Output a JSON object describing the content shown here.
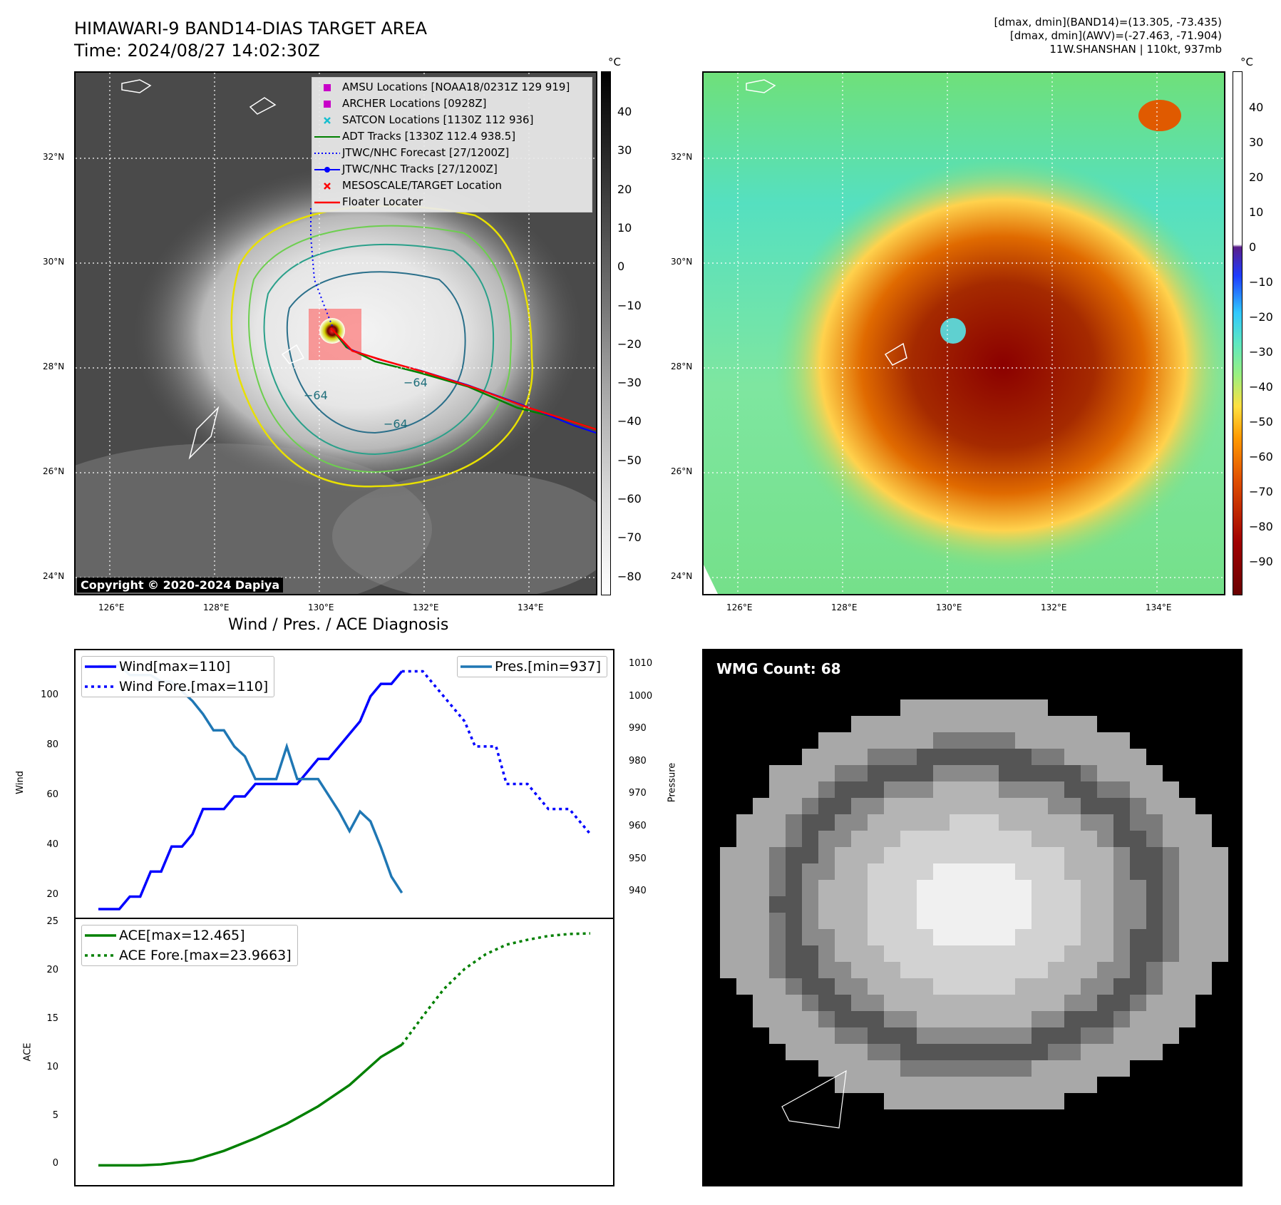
{
  "header": {
    "title": "HIMAWARI-9 BAND14-DIAS TARGET AREA",
    "time": "Time: 2024/08/27 14:02:30Z",
    "stats_line1": "[dmax, dmin](BAND14)=(13.305, -73.435)",
    "stats_line2": "[dmax, dmin](AWV)=(-27.463, -71.904)",
    "stats_line3": "11W.SHANSHAN | 110kt, 937mb"
  },
  "map_ir": {
    "copyright": "Copyright © 2020-2024 Dapiya",
    "colorbar_unit": "°C",
    "colorbar_ticks": [
      "40",
      "30",
      "20",
      "10",
      "0",
      "−10",
      "−20",
      "−30",
      "−40",
      "−50",
      "−60",
      "−70",
      "−80"
    ],
    "lat_labels": [
      "32°N",
      "30°N",
      "28°N",
      "26°N",
      "24°N"
    ],
    "lon_labels": [
      "126°E",
      "128°E",
      "130°E",
      "132°E",
      "134°E"
    ],
    "contour_labels": [
      "−64",
      "−64",
      "−64"
    ],
    "legend": [
      {
        "label": "AMSU Locations [NOAA18/0231Z 129 919]",
        "symbol": "magenta-square",
        "color": "#c800c8"
      },
      {
        "label": "ARCHER Locations [0928Z]",
        "symbol": "magenta-square",
        "color": "#c800c8"
      },
      {
        "label": "SATCON Locations [1130Z 112 936]",
        "symbol": "cyan-x",
        "color": "#17becf"
      },
      {
        "label": "ADT Tracks [1330Z 112.4 938.5]",
        "symbol": "green-line",
        "color": "#008000"
      },
      {
        "label": "JTWC/NHC Forecast [27/1200Z]",
        "symbol": "blue-dotted-line",
        "color": "#0000ff"
      },
      {
        "label": "JTWC/NHC Tracks [27/1200Z]",
        "symbol": "blue-line-dot",
        "color": "#0000ff"
      },
      {
        "label": "MESOSCALE/TARGET Location",
        "symbol": "red-x",
        "color": "#ff0000"
      },
      {
        "label": "Floater Locater",
        "symbol": "red-line",
        "color": "#ff0000"
      }
    ]
  },
  "map_awv": {
    "colorbar_unit": "°C",
    "colorbar_ticks": [
      "40",
      "30",
      "20",
      "10",
      "0",
      "−10",
      "−20",
      "−30",
      "−40",
      "−50",
      "−60",
      "−70",
      "−80",
      "−90"
    ],
    "lat_labels": [
      "32°N",
      "30°N",
      "28°N",
      "26°N",
      "24°N"
    ],
    "lon_labels": [
      "126°E",
      "128°E",
      "130°E",
      "132°E",
      "134°E"
    ]
  },
  "diagnosis": {
    "title": "Wind / Pres. / ACE Diagnosis",
    "wind_axis_label": "Wind",
    "pressure_axis_label": "Pressure",
    "ace_axis_label": "ACE",
    "legend_wind": "Wind[max=110]",
    "legend_wind_fore": "Wind Fore.[max=110]",
    "legend_pres": "Pres.[min=937]",
    "legend_ace": "ACE[max=12.465]",
    "legend_ace_fore": "ACE Fore.[max=23.9663]",
    "wind_ticks": [
      "100",
      "80",
      "60",
      "40",
      "20"
    ],
    "pres_ticks": [
      "1010",
      "1000",
      "990",
      "980",
      "970",
      "960",
      "950",
      "940"
    ],
    "ace_ticks": [
      "25",
      "20",
      "15",
      "10",
      "5",
      "0"
    ]
  },
  "wmg": {
    "count_label": "WMG Count: 68"
  },
  "chart_data": [
    {
      "type": "line",
      "name": "wind",
      "ylim": [
        15,
        115
      ],
      "x": [
        0,
        1,
        2,
        3,
        4,
        5,
        6,
        7,
        8,
        9,
        10,
        11,
        12,
        13,
        14,
        15,
        16,
        17,
        18,
        19,
        20,
        21,
        22,
        23,
        24,
        25,
        26,
        27,
        28,
        29
      ],
      "series": [
        {
          "name": "Wind[max=110]",
          "style": "solid",
          "color": "#0000ff",
          "values": [
            15,
            15,
            15,
            20,
            20,
            30,
            30,
            40,
            40,
            45,
            55,
            55,
            55,
            60,
            60,
            65,
            65,
            65,
            65,
            65,
            70,
            75,
            75,
            80,
            85,
            90,
            100,
            105,
            105,
            110
          ]
        },
        {
          "name": "Wind Fore.[max=110]",
          "style": "dotted",
          "color": "#0000ff",
          "x": [
            29,
            30,
            31,
            32,
            33,
            34,
            35,
            36,
            37,
            38,
            39,
            40,
            41,
            42,
            43,
            44,
            45,
            46,
            47
          ],
          "values": [
            110,
            110,
            110,
            105,
            100,
            95,
            90,
            80,
            80,
            80,
            65,
            65,
            65,
            60,
            55,
            55,
            55,
            50,
            45
          ]
        }
      ]
    },
    {
      "type": "line",
      "name": "pressure",
      "ylim": [
        935,
        1012
      ],
      "series": [
        {
          "name": "Pres.[min=937]",
          "style": "solid",
          "color": "#1f77b4",
          "x": [
            0,
            1,
            2,
            3,
            4,
            5,
            6,
            7,
            8,
            9,
            10,
            11,
            12,
            13,
            14,
            15,
            16,
            17,
            18,
            19,
            20,
            21,
            22,
            23,
            24,
            25,
            26,
            27,
            28,
            29
          ],
          "values": [
            1010,
            1010,
            1010,
            1007,
            1007,
            1007,
            1005,
            1005,
            1002,
            999,
            995,
            990,
            990,
            985,
            982,
            975,
            975,
            975,
            985,
            975,
            975,
            975,
            970,
            965,
            959,
            965,
            962,
            954,
            945,
            940
          ]
        }
      ]
    },
    {
      "type": "line",
      "name": "ace",
      "ylim": [
        -1,
        25
      ],
      "series": [
        {
          "name": "ACE[max=12.465]",
          "style": "solid",
          "color": "#008000",
          "x": [
            0,
            4,
            6,
            9,
            12,
            15,
            18,
            21,
            24,
            27,
            29
          ],
          "values": [
            0,
            0,
            0.1,
            0.5,
            1.5,
            2.8,
            4.3,
            6.1,
            8.3,
            11.2,
            12.465
          ]
        },
        {
          "name": "ACE Fore.[max=23.9663]",
          "style": "dotted",
          "color": "#008000",
          "x": [
            29,
            31,
            33,
            35,
            37,
            39,
            41,
            43,
            45,
            47
          ],
          "values": [
            12.465,
            15.4,
            18.2,
            20.3,
            21.8,
            22.8,
            23.3,
            23.7,
            23.9,
            23.9663
          ]
        }
      ]
    }
  ]
}
